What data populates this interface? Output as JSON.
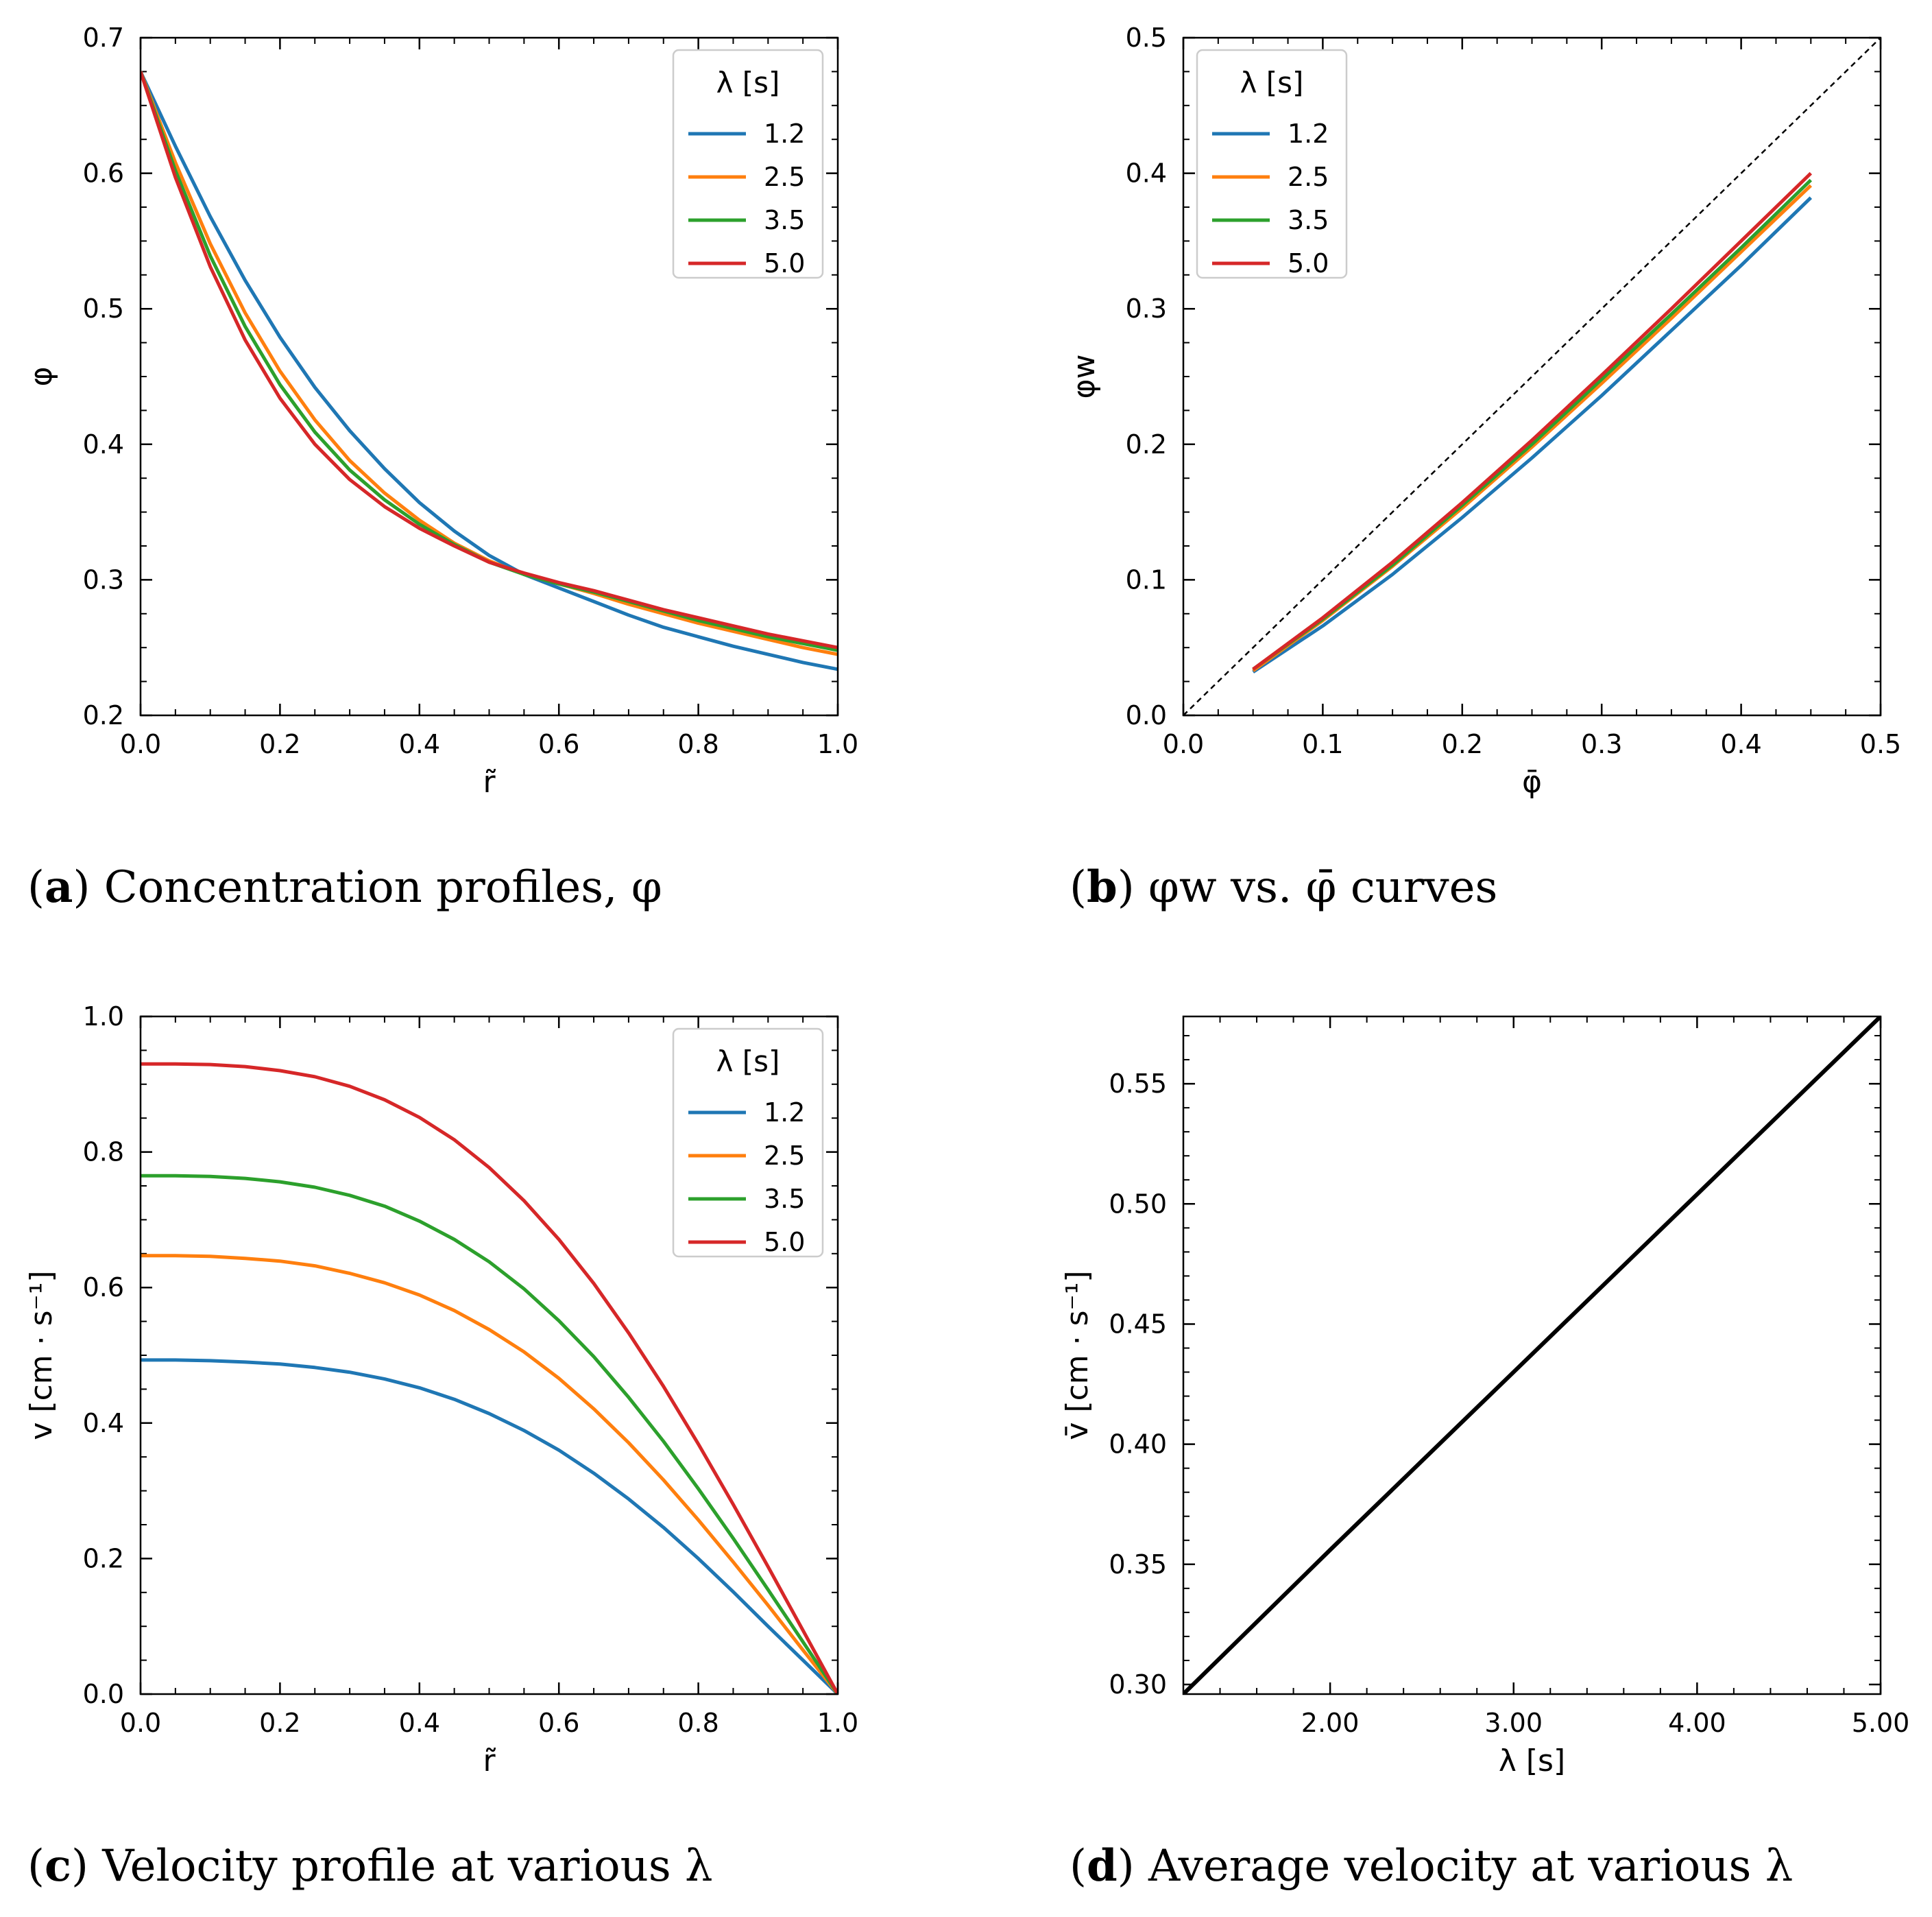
{
  "colors": {
    "s1": "#1f77b4",
    "s2": "#ff7f0e",
    "s3": "#2ca02c",
    "s4": "#d62728",
    "black": "#000000"
  },
  "chart_data": [
    {
      "panel": "a",
      "type": "line",
      "caption_letter": "a",
      "caption": ") Concentration profiles, φ",
      "xlabel": "r̃",
      "ylabel": "φ",
      "xlim": [
        0.0,
        1.0
      ],
      "ylim": [
        0.2,
        0.7
      ],
      "xticks": [
        "0.0",
        "0.2",
        "0.4",
        "0.6",
        "0.8",
        "1.0"
      ],
      "yticks": [
        "0.2",
        "0.3",
        "0.4",
        "0.5",
        "0.6",
        "0.7"
      ],
      "legend_title": "λ [s]",
      "legend_position": "upper-right",
      "x": [
        0.0,
        0.05,
        0.1,
        0.15,
        0.2,
        0.25,
        0.3,
        0.35,
        0.4,
        0.45,
        0.5,
        0.55,
        0.6,
        0.65,
        0.7,
        0.75,
        0.8,
        0.85,
        0.9,
        0.95,
        1.0
      ],
      "series": [
        {
          "name": "1.2",
          "color_key": "s1",
          "values": [
            0.675,
            0.62,
            0.568,
            0.521,
            0.479,
            0.442,
            0.41,
            0.382,
            0.357,
            0.336,
            0.318,
            0.304,
            0.294,
            0.284,
            0.274,
            0.265,
            0.258,
            0.251,
            0.245,
            0.239,
            0.234
          ]
        },
        {
          "name": "2.5",
          "color_key": "s2",
          "values": [
            0.675,
            0.608,
            0.548,
            0.497,
            0.454,
            0.418,
            0.388,
            0.364,
            0.344,
            0.327,
            0.314,
            0.304,
            0.297,
            0.29,
            0.282,
            0.275,
            0.268,
            0.262,
            0.256,
            0.25,
            0.245
          ]
        },
        {
          "name": "3.5",
          "color_key": "s3",
          "values": [
            0.675,
            0.602,
            0.539,
            0.487,
            0.444,
            0.409,
            0.381,
            0.359,
            0.341,
            0.326,
            0.313,
            0.304,
            0.297,
            0.291,
            0.284,
            0.277,
            0.27,
            0.264,
            0.258,
            0.253,
            0.248
          ]
        },
        {
          "name": "5.0",
          "color_key": "s4",
          "values": [
            0.675,
            0.597,
            0.531,
            0.477,
            0.434,
            0.4,
            0.374,
            0.354,
            0.338,
            0.325,
            0.313,
            0.305,
            0.298,
            0.292,
            0.285,
            0.278,
            0.272,
            0.266,
            0.26,
            0.255,
            0.25
          ]
        }
      ]
    },
    {
      "panel": "b",
      "type": "line",
      "caption_letter": "b",
      "caption": ") φw vs. φ̄ curves",
      "xlabel": "φ̄",
      "ylabel": "φw",
      "xlim": [
        0.0,
        0.5
      ],
      "ylim": [
        0.0,
        0.5
      ],
      "xticks": [
        "0.0",
        "0.1",
        "0.2",
        "0.3",
        "0.4",
        "0.5"
      ],
      "yticks": [
        "0.0",
        "0.1",
        "0.2",
        "0.3",
        "0.4",
        "0.5"
      ],
      "legend_title": "λ [s]",
      "legend_position": "upper-left",
      "reference_line": {
        "x": [
          0.0,
          0.5
        ],
        "y": [
          0.0,
          0.5
        ],
        "style": "dashed"
      },
      "x": [
        0.05,
        0.1,
        0.15,
        0.2,
        0.25,
        0.3,
        0.35,
        0.4,
        0.45
      ],
      "series": [
        {
          "name": "1.2",
          "color_key": "s1",
          "values": [
            0.032,
            0.066,
            0.104,
            0.146,
            0.19,
            0.236,
            0.284,
            0.332,
            0.382
          ]
        },
        {
          "name": "2.5",
          "color_key": "s2",
          "values": [
            0.033,
            0.07,
            0.11,
            0.153,
            0.198,
            0.245,
            0.293,
            0.342,
            0.391
          ]
        },
        {
          "name": "3.5",
          "color_key": "s3",
          "values": [
            0.034,
            0.071,
            0.111,
            0.155,
            0.2,
            0.248,
            0.296,
            0.345,
            0.395
          ]
        },
        {
          "name": "5.0",
          "color_key": "s4",
          "values": [
            0.034,
            0.072,
            0.113,
            0.157,
            0.203,
            0.251,
            0.3,
            0.35,
            0.4
          ]
        }
      ]
    },
    {
      "panel": "c",
      "type": "line",
      "caption_letter": "c",
      "caption": ") Velocity profile at various λ",
      "xlabel": "r̃",
      "ylabel": "v [cm · s⁻¹]",
      "xlim": [
        0.0,
        1.0
      ],
      "ylim": [
        0.0,
        1.0
      ],
      "xticks": [
        "0.0",
        "0.2",
        "0.4",
        "0.6",
        "0.8",
        "1.0"
      ],
      "yticks": [
        "0.0",
        "0.2",
        "0.4",
        "0.6",
        "0.8",
        "1.0"
      ],
      "legend_title": "λ [s]",
      "legend_position": "upper-right",
      "x": [
        0.0,
        0.05,
        0.1,
        0.15,
        0.2,
        0.25,
        0.3,
        0.35,
        0.4,
        0.45,
        0.5,
        0.55,
        0.6,
        0.65,
        0.7,
        0.75,
        0.8,
        0.85,
        0.9,
        0.95,
        1.0
      ],
      "series": [
        {
          "name": "1.2",
          "color_key": "s1",
          "values": [
            0.493,
            0.493,
            0.492,
            0.49,
            0.487,
            0.482,
            0.475,
            0.465,
            0.452,
            0.435,
            0.414,
            0.389,
            0.36,
            0.326,
            0.288,
            0.246,
            0.2,
            0.151,
            0.1,
            0.05,
            0.0
          ]
        },
        {
          "name": "2.5",
          "color_key": "s2",
          "values": [
            0.647,
            0.647,
            0.646,
            0.643,
            0.639,
            0.632,
            0.621,
            0.607,
            0.589,
            0.566,
            0.538,
            0.505,
            0.466,
            0.421,
            0.371,
            0.316,
            0.257,
            0.195,
            0.131,
            0.065,
            0.0
          ]
        },
        {
          "name": "3.5",
          "color_key": "s3",
          "values": [
            0.765,
            0.765,
            0.764,
            0.761,
            0.756,
            0.748,
            0.736,
            0.72,
            0.698,
            0.671,
            0.638,
            0.598,
            0.551,
            0.498,
            0.438,
            0.373,
            0.303,
            0.23,
            0.154,
            0.077,
            0.0
          ]
        },
        {
          "name": "5.0",
          "color_key": "s4",
          "values": [
            0.93,
            0.93,
            0.929,
            0.926,
            0.92,
            0.911,
            0.897,
            0.877,
            0.851,
            0.818,
            0.777,
            0.728,
            0.671,
            0.606,
            0.533,
            0.454,
            0.369,
            0.28,
            0.188,
            0.094,
            0.0
          ]
        }
      ]
    },
    {
      "panel": "d",
      "type": "line",
      "caption_letter": "d",
      "caption": ") Average velocity at various λ",
      "xlabel": "λ [s]",
      "ylabel": "v̄ [cm · s⁻¹]",
      "xlim": [
        1.2,
        5.0
      ],
      "ylim": [
        0.296,
        0.578
      ],
      "xticks": [
        "2.00",
        "3.00",
        "4.00",
        "5.00"
      ],
      "xtick_values": [
        2.0,
        3.0,
        4.0,
        5.0
      ],
      "yticks": [
        "0.30",
        "0.35",
        "0.40",
        "0.45",
        "0.50",
        "0.55"
      ],
      "ytick_values": [
        0.3,
        0.35,
        0.4,
        0.45,
        0.5,
        0.55
      ],
      "x": [
        1.2,
        2.0,
        3.0,
        4.0,
        5.0
      ],
      "series": [
        {
          "name": "",
          "color_key": "black",
          "values": [
            0.296,
            0.356,
            0.43,
            0.504,
            0.578
          ]
        }
      ]
    }
  ]
}
